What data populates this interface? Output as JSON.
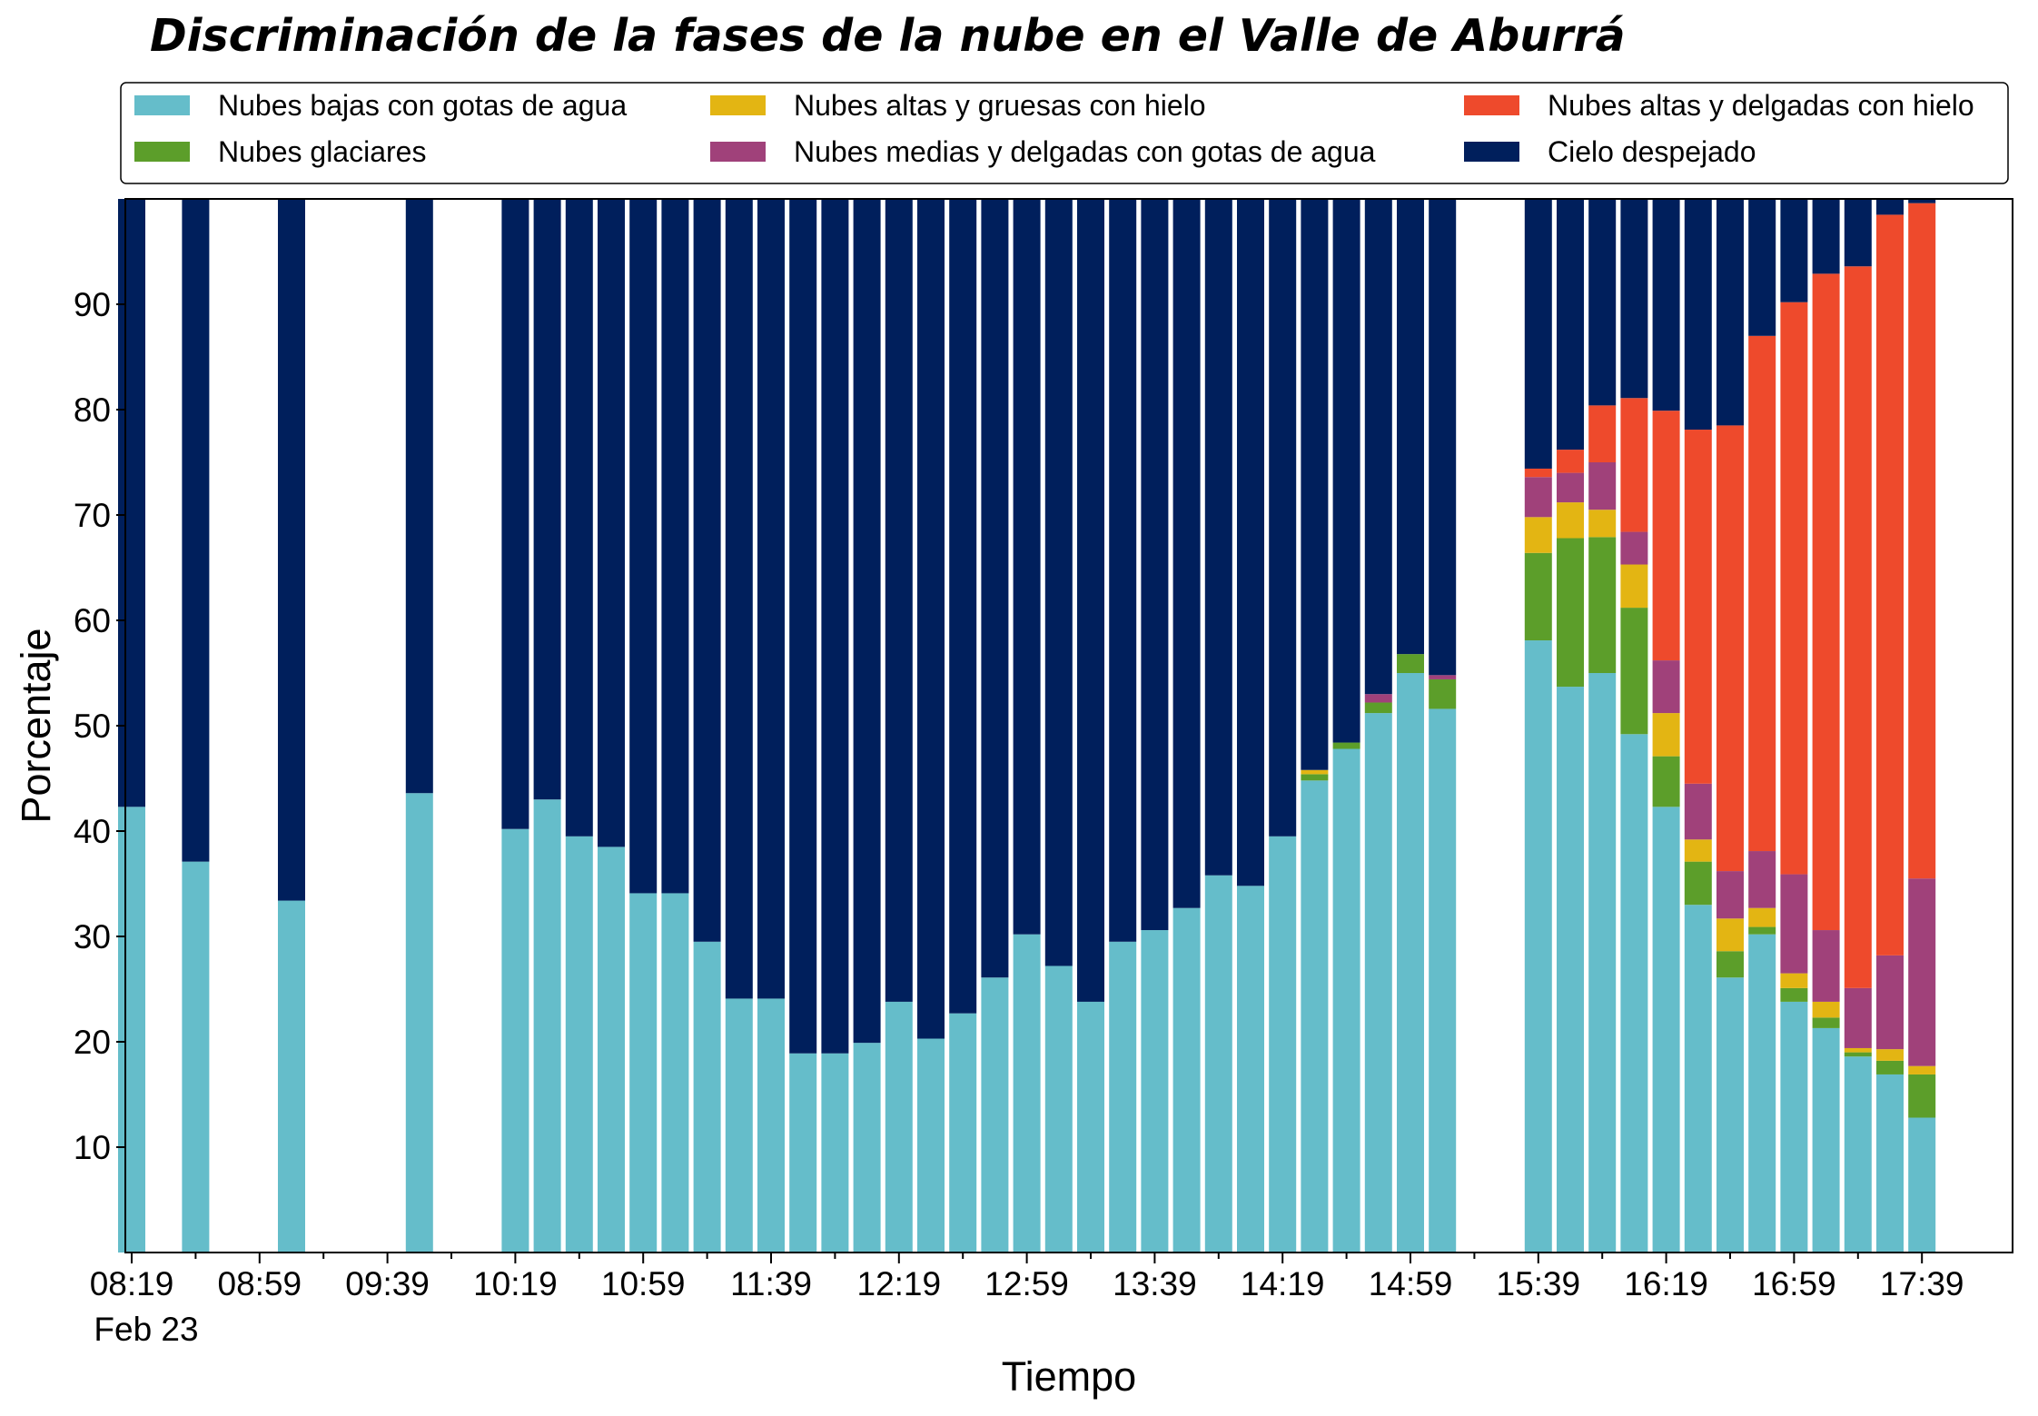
{
  "chart_data": {
    "type": "bar",
    "stacked": true,
    "title": "Discriminación de la fases de la nube en el Valle de Aburrá",
    "xlabel": "Tiempo",
    "ylabel": "Porcentaje",
    "ylim": [
      0,
      100
    ],
    "yticks": [
      10,
      20,
      30,
      40,
      50,
      60,
      70,
      80,
      90
    ],
    "date_label": "Feb 23",
    "bin_minutes": 10,
    "x_start_time": "08:19",
    "x_end_time": "17:49",
    "xticks": [
      "08:19",
      "08:59",
      "09:39",
      "10:19",
      "10:59",
      "11:39",
      "12:19",
      "12:59",
      "13:39",
      "14:19",
      "14:59",
      "15:39",
      "16:19",
      "16:59",
      "17:39"
    ],
    "legend_position": "top",
    "grid": false,
    "colors": {
      "low_water": "#65BDCA",
      "glacial": "#5C9E2A",
      "high_thick_ice": "#E3B513",
      "mid_thin_water": "#A0417A",
      "high_thin_ice": "#EE4A2C",
      "clear": "#001F5C"
    },
    "series": [
      {
        "key": "low_water",
        "name": "Nubes bajas con gotas de agua",
        "color": "#65BDCA"
      },
      {
        "key": "glacial",
        "name": "Nubes glaciares",
        "color": "#5C9E2A"
      },
      {
        "key": "high_thick_ice",
        "name": "Nubes altas y gruesas con hielo",
        "color": "#E3B513"
      },
      {
        "key": "mid_thin_water",
        "name": "Nubes medias y delgadas con gotas de agua",
        "color": "#A0417A"
      },
      {
        "key": "high_thin_ice",
        "name": "Nubes altas y delgadas con hielo",
        "color": "#EE4A2C"
      },
      {
        "key": "clear",
        "name": "Cielo despejado",
        "color": "#001F5C"
      }
    ],
    "bars": [
      {
        "time": "08:19",
        "low_water": 42.3,
        "glacial": 0,
        "high_thick_ice": 0,
        "mid_thin_water": 0,
        "high_thin_ice": 0,
        "clear": 57.7
      },
      {
        "time": "08:39",
        "low_water": 37.1,
        "glacial": 0,
        "high_thick_ice": 0,
        "mid_thin_water": 0,
        "high_thin_ice": 0,
        "clear": 62.9
      },
      {
        "time": "09:09",
        "low_water": 33.4,
        "glacial": 0,
        "high_thick_ice": 0,
        "mid_thin_water": 0,
        "high_thin_ice": 0,
        "clear": 66.6
      },
      {
        "time": "09:49",
        "low_water": 43.6,
        "glacial": 0,
        "high_thick_ice": 0,
        "mid_thin_water": 0,
        "high_thin_ice": 0,
        "clear": 56.4
      },
      {
        "time": "10:19",
        "low_water": 40.2,
        "glacial": 0,
        "high_thick_ice": 0,
        "mid_thin_water": 0,
        "high_thin_ice": 0,
        "clear": 59.8
      },
      {
        "time": "10:29",
        "low_water": 43.0,
        "glacial": 0,
        "high_thick_ice": 0,
        "mid_thin_water": 0,
        "high_thin_ice": 0,
        "clear": 57.0
      },
      {
        "time": "10:39",
        "low_water": 39.5,
        "glacial": 0,
        "high_thick_ice": 0,
        "mid_thin_water": 0,
        "high_thin_ice": 0,
        "clear": 60.5
      },
      {
        "time": "10:49",
        "low_water": 38.5,
        "glacial": 0,
        "high_thick_ice": 0,
        "mid_thin_water": 0,
        "high_thin_ice": 0,
        "clear": 61.5
      },
      {
        "time": "10:59",
        "low_water": 34.1,
        "glacial": 0,
        "high_thick_ice": 0,
        "mid_thin_water": 0,
        "high_thin_ice": 0,
        "clear": 65.9
      },
      {
        "time": "11:09",
        "low_water": 34.1,
        "glacial": 0,
        "high_thick_ice": 0,
        "mid_thin_water": 0,
        "high_thin_ice": 0,
        "clear": 65.9
      },
      {
        "time": "11:19",
        "low_water": 29.5,
        "glacial": 0,
        "high_thick_ice": 0,
        "mid_thin_water": 0,
        "high_thin_ice": 0,
        "clear": 70.5
      },
      {
        "time": "11:29",
        "low_water": 24.1,
        "glacial": 0,
        "high_thick_ice": 0,
        "mid_thin_water": 0,
        "high_thin_ice": 0,
        "clear": 75.9
      },
      {
        "time": "11:39",
        "low_water": 24.1,
        "glacial": 0,
        "high_thick_ice": 0,
        "mid_thin_water": 0,
        "high_thin_ice": 0,
        "clear": 75.9
      },
      {
        "time": "11:49",
        "low_water": 18.9,
        "glacial": 0,
        "high_thick_ice": 0,
        "mid_thin_water": 0,
        "high_thin_ice": 0,
        "clear": 81.1
      },
      {
        "time": "11:59",
        "low_water": 18.9,
        "glacial": 0,
        "high_thick_ice": 0,
        "mid_thin_water": 0,
        "high_thin_ice": 0,
        "clear": 81.1
      },
      {
        "time": "12:09",
        "low_water": 19.9,
        "glacial": 0,
        "high_thick_ice": 0,
        "mid_thin_water": 0,
        "high_thin_ice": 0,
        "clear": 80.1
      },
      {
        "time": "12:19",
        "low_water": 23.8,
        "glacial": 0,
        "high_thick_ice": 0,
        "mid_thin_water": 0,
        "high_thin_ice": 0,
        "clear": 76.2
      },
      {
        "time": "12:29",
        "low_water": 20.3,
        "glacial": 0,
        "high_thick_ice": 0,
        "mid_thin_water": 0,
        "high_thin_ice": 0,
        "clear": 79.7
      },
      {
        "time": "12:39",
        "low_water": 22.7,
        "glacial": 0,
        "high_thick_ice": 0,
        "mid_thin_water": 0,
        "high_thin_ice": 0,
        "clear": 77.3
      },
      {
        "time": "12:49",
        "low_water": 26.1,
        "glacial": 0,
        "high_thick_ice": 0,
        "mid_thin_water": 0,
        "high_thin_ice": 0,
        "clear": 73.9
      },
      {
        "time": "12:59",
        "low_water": 30.2,
        "glacial": 0,
        "high_thick_ice": 0,
        "mid_thin_water": 0,
        "high_thin_ice": 0,
        "clear": 69.8
      },
      {
        "time": "13:09",
        "low_water": 27.2,
        "glacial": 0,
        "high_thick_ice": 0,
        "mid_thin_water": 0,
        "high_thin_ice": 0,
        "clear": 72.8
      },
      {
        "time": "13:19",
        "low_water": 23.8,
        "glacial": 0,
        "high_thick_ice": 0,
        "mid_thin_water": 0,
        "high_thin_ice": 0,
        "clear": 76.2
      },
      {
        "time": "13:29",
        "low_water": 29.5,
        "glacial": 0,
        "high_thick_ice": 0,
        "mid_thin_water": 0,
        "high_thin_ice": 0,
        "clear": 70.5
      },
      {
        "time": "13:39",
        "low_water": 30.6,
        "glacial": 0,
        "high_thick_ice": 0,
        "mid_thin_water": 0,
        "high_thin_ice": 0,
        "clear": 69.4
      },
      {
        "time": "13:49",
        "low_water": 32.7,
        "glacial": 0,
        "high_thick_ice": 0,
        "mid_thin_water": 0,
        "high_thin_ice": 0,
        "clear": 67.3
      },
      {
        "time": "13:59",
        "low_water": 35.8,
        "glacial": 0,
        "high_thick_ice": 0,
        "mid_thin_water": 0,
        "high_thin_ice": 0,
        "clear": 64.2
      },
      {
        "time": "14:09",
        "low_water": 34.8,
        "glacial": 0,
        "high_thick_ice": 0,
        "mid_thin_water": 0,
        "high_thin_ice": 0,
        "clear": 65.2
      },
      {
        "time": "14:19",
        "low_water": 39.5,
        "glacial": 0,
        "high_thick_ice": 0,
        "mid_thin_water": 0,
        "high_thin_ice": 0,
        "clear": 60.5
      },
      {
        "time": "14:29",
        "low_water": 44.8,
        "glacial": 0.6,
        "high_thick_ice": 0.4,
        "mid_thin_water": 0,
        "high_thin_ice": 0,
        "clear": 54.2
      },
      {
        "time": "14:39",
        "low_water": 47.8,
        "glacial": 0.6,
        "high_thick_ice": 0,
        "mid_thin_water": 0,
        "high_thin_ice": 0,
        "clear": 51.6
      },
      {
        "time": "14:49",
        "low_water": 51.2,
        "glacial": 1.0,
        "high_thick_ice": 0,
        "mid_thin_water": 0.8,
        "high_thin_ice": 0,
        "clear": 47.0
      },
      {
        "time": "14:59",
        "low_water": 55.0,
        "glacial": 1.8,
        "high_thick_ice": 0,
        "mid_thin_water": 0,
        "high_thin_ice": 0,
        "clear": 43.2
      },
      {
        "time": "15:09",
        "low_water": 51.6,
        "glacial": 2.8,
        "high_thick_ice": 0,
        "mid_thin_water": 0.4,
        "high_thin_ice": 0,
        "clear": 45.2
      },
      {
        "time": "15:39",
        "low_water": 58.1,
        "glacial": 8.3,
        "high_thick_ice": 3.4,
        "mid_thin_water": 3.8,
        "high_thin_ice": 0.8,
        "clear": 25.6
      },
      {
        "time": "15:49",
        "low_water": 53.7,
        "glacial": 14.1,
        "high_thick_ice": 3.4,
        "mid_thin_water": 2.8,
        "high_thin_ice": 2.2,
        "clear": 23.8
      },
      {
        "time": "15:59",
        "low_water": 55.0,
        "glacial": 12.9,
        "high_thick_ice": 2.6,
        "mid_thin_water": 4.5,
        "high_thin_ice": 5.4,
        "clear": 19.6
      },
      {
        "time": "16:09",
        "low_water": 49.2,
        "glacial": 12.0,
        "high_thick_ice": 4.1,
        "mid_thin_water": 3.1,
        "high_thin_ice": 12.7,
        "clear": 18.9
      },
      {
        "time": "16:19",
        "low_water": 42.3,
        "glacial": 4.8,
        "high_thick_ice": 4.1,
        "mid_thin_water": 5.0,
        "high_thin_ice": 23.7,
        "clear": 20.1
      },
      {
        "time": "16:29",
        "low_water": 33.0,
        "glacial": 4.1,
        "high_thick_ice": 2.1,
        "mid_thin_water": 5.3,
        "high_thin_ice": 33.6,
        "clear": 21.9
      },
      {
        "time": "16:39",
        "low_water": 26.1,
        "glacial": 2.5,
        "high_thick_ice": 3.1,
        "mid_thin_water": 4.5,
        "high_thin_ice": 42.3,
        "clear": 21.5
      },
      {
        "time": "16:49",
        "low_water": 30.2,
        "glacial": 0.7,
        "high_thick_ice": 1.8,
        "mid_thin_water": 5.4,
        "high_thin_ice": 48.9,
        "clear": 13.0
      },
      {
        "time": "16:59",
        "low_water": 23.8,
        "glacial": 1.3,
        "high_thick_ice": 1.4,
        "mid_thin_water": 9.4,
        "high_thin_ice": 54.3,
        "clear": 9.8
      },
      {
        "time": "17:09",
        "low_water": 21.3,
        "glacial": 1.0,
        "high_thick_ice": 1.5,
        "mid_thin_water": 6.8,
        "high_thin_ice": 62.3,
        "clear": 7.1
      },
      {
        "time": "17:19",
        "low_water": 18.6,
        "glacial": 0.4,
        "high_thick_ice": 0.4,
        "mid_thin_water": 5.7,
        "high_thin_ice": 68.5,
        "clear": 6.4
      },
      {
        "time": "17:29",
        "low_water": 16.9,
        "glacial": 1.3,
        "high_thick_ice": 1.1,
        "mid_thin_water": 8.9,
        "high_thin_ice": 70.3,
        "clear": 1.5
      },
      {
        "time": "17:39",
        "low_water": 12.8,
        "glacial": 4.1,
        "high_thick_ice": 0.8,
        "mid_thin_water": 17.8,
        "high_thin_ice": 64.1,
        "clear": 0.4
      }
    ]
  }
}
